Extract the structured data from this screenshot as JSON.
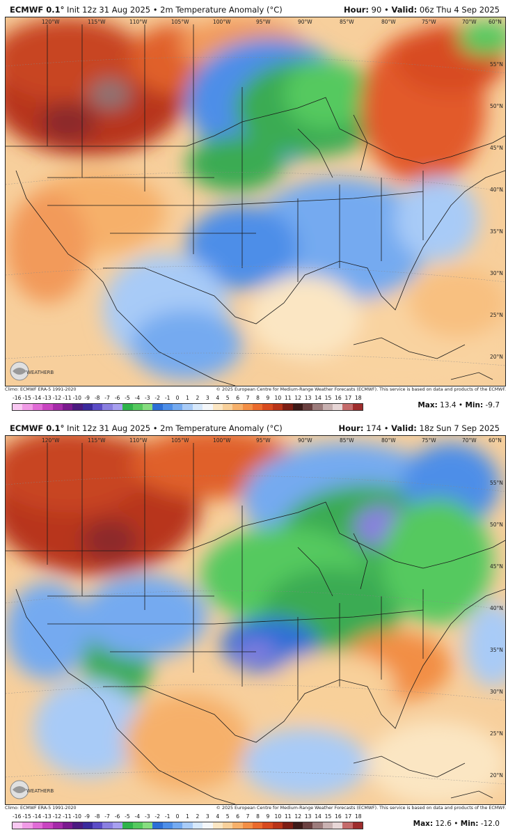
{
  "panels": [
    {
      "title_model": "ECMWF 0.1°",
      "title_rest": " Init 12z 31 Aug 2025 • 2m Temperature Anomaly (°C)",
      "hour_label": "Hour:",
      "hour_value": " 90",
      "valid_label": "Valid:",
      "valid_value": " 06z Thu 4 Sep 2025",
      "climo": "Climo: ECMWF ERA-5 1991-2020",
      "copyright": "© 2025 European Centre for Medium-Range Weather Forecasts (ECMWF). This service is based on data and products of the ECMWF.",
      "max_label": "Max:",
      "max_value": " 13.4",
      "min_label": "Min:",
      "min_value": " -9.7"
    },
    {
      "title_model": "ECMWF 0.1°",
      "title_rest": " Init 12z 31 Aug 2025 • 2m Temperature Anomaly (°C)",
      "hour_label": "Hour:",
      "hour_value": " 174",
      "valid_label": "Valid:",
      "valid_value": " 18z Sun 7 Sep 2025",
      "climo": "Climo: ECMWF ERA-5 1991-2020",
      "copyright": "© 2025 European Centre for Medium-Range Weather Forecasts (ECMWF). This service is based on data and products of the ECMWF.",
      "max_label": "Max:",
      "max_value": " 12.6",
      "min_label": "Min:",
      "min_value": " -12.0"
    }
  ],
  "scale": {
    "ticks": [
      "-16",
      "-15",
      "-14",
      "-13",
      "-12",
      "-11",
      "-10",
      "-9",
      "-8",
      "-7",
      "-6",
      "-5",
      "-4",
      "-3",
      "-2",
      "-1",
      "0",
      "1",
      "2",
      "3",
      "4",
      "5",
      "6",
      "7",
      "8",
      "9",
      "10",
      "11",
      "12",
      "13",
      "14",
      "15",
      "16",
      "17",
      "18"
    ],
    "colors": [
      "#f9c8f2",
      "#f09be6",
      "#e06bd6",
      "#c844c0",
      "#a42aa8",
      "#7a1a8e",
      "#4b1a80",
      "#3a2a9c",
      "#5b4cc6",
      "#8a7fe0",
      "#a79fef",
      "#2fb34a",
      "#55c95e",
      "#86dd7f",
      "#2d6fd6",
      "#4d8ee8",
      "#74aaf0",
      "#a8cbf7",
      "#d6e8fb",
      "#f4f7fa",
      "#fbe6c3",
      "#f8d09a",
      "#f6b06a",
      "#f28e45",
      "#ea6a2c",
      "#d74a1e",
      "#b83418",
      "#7c1e14",
      "#3c1a18",
      "#6a4040",
      "#9c7c7c",
      "#c8b1b1",
      "#e7d6d6",
      "#c46a6a",
      "#9e2c2c"
    ]
  },
  "longitudes": [
    "120°W",
    "115°W",
    "110°W",
    "105°W",
    "100°W",
    "95°W",
    "90°W",
    "85°W",
    "80°W",
    "75°W",
    "70°W",
    "60°N"
  ],
  "latitudes": [
    "55°N",
    "50°N",
    "45°N",
    "40°N",
    "35°N",
    "30°N",
    "25°N",
    "20°N"
  ],
  "logo_text": "WEATHERBELL",
  "colors": {
    "land_warm": "#f7c990",
    "border": "#222222"
  }
}
